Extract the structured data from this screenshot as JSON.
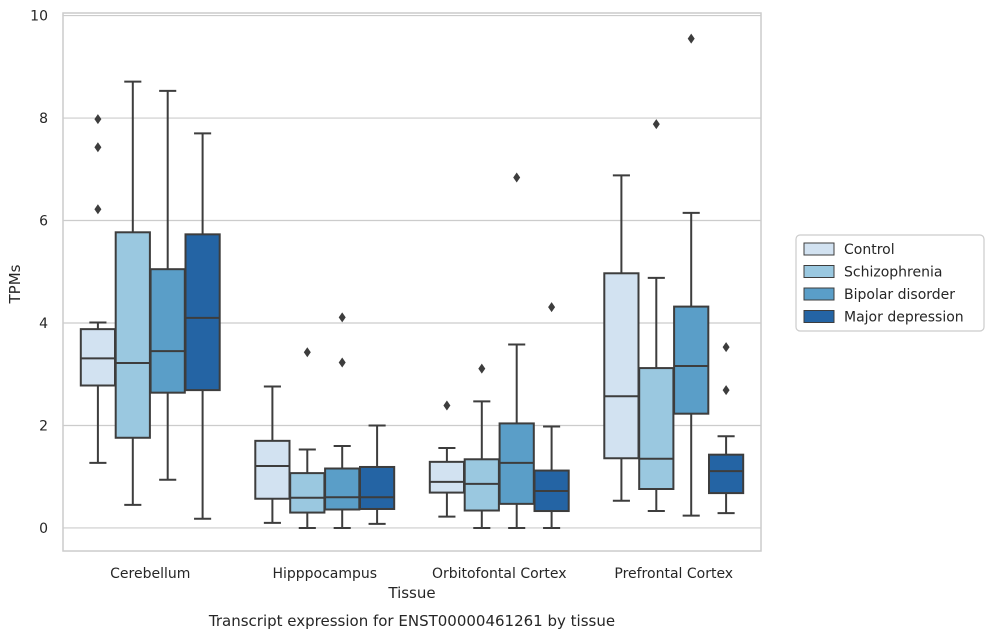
{
  "chart_data": {
    "type": "box",
    "xlabel": "Tissue",
    "ylabel": "TPMs",
    "caption": "Transcript expression for ENST00000461261 by tissue",
    "ylim": [
      -0.45,
      10.05
    ],
    "yticks": [
      0,
      2,
      4,
      6,
      8,
      10
    ],
    "grid": true,
    "legend_position": "right",
    "categories": [
      "Cerebellum",
      "Hipppocampus",
      "Orbitofontal Cortex",
      "Prefrontal Cortex"
    ],
    "series": [
      {
        "name": "Control",
        "color": "#d2e2f1",
        "boxes": [
          {
            "whisker_low": 1.27,
            "q1": 2.78,
            "median": 3.31,
            "q3": 3.88,
            "whisker_high": 4.01,
            "outliers": [
              6.22,
              7.43,
              7.98
            ]
          },
          {
            "whisker_low": 0.1,
            "q1": 0.57,
            "median": 1.21,
            "q3": 1.7,
            "whisker_high": 2.76,
            "outliers": []
          },
          {
            "whisker_low": 0.22,
            "q1": 0.69,
            "median": 0.9,
            "q3": 1.29,
            "whisker_high": 1.56,
            "outliers": [
              2.39
            ]
          },
          {
            "whisker_low": 0.53,
            "q1": 1.36,
            "median": 2.57,
            "q3": 4.97,
            "whisker_high": 6.88,
            "outliers": []
          }
        ]
      },
      {
        "name": "Schizophrenia",
        "color": "#9ac8e0",
        "boxes": [
          {
            "whisker_low": 0.45,
            "q1": 1.76,
            "median": 3.22,
            "q3": 5.77,
            "whisker_high": 8.71,
            "outliers": []
          },
          {
            "whisker_low": 0.0,
            "q1": 0.3,
            "median": 0.59,
            "q3": 1.07,
            "whisker_high": 1.53,
            "outliers": [
              3.43
            ]
          },
          {
            "whisker_low": 0.0,
            "q1": 0.34,
            "median": 0.86,
            "q3": 1.34,
            "whisker_high": 2.47,
            "outliers": [
              3.11
            ]
          },
          {
            "whisker_low": 0.33,
            "q1": 0.76,
            "median": 1.35,
            "q3": 3.12,
            "whisker_high": 4.88,
            "outliers": [
              7.88
            ]
          }
        ]
      },
      {
        "name": "Bipolar disorder",
        "color": "#5a9ec8",
        "boxes": [
          {
            "whisker_low": 0.94,
            "q1": 2.64,
            "median": 3.45,
            "q3": 5.05,
            "whisker_high": 8.53,
            "outliers": []
          },
          {
            "whisker_low": 0.0,
            "q1": 0.36,
            "median": 0.6,
            "q3": 1.16,
            "whisker_high": 1.6,
            "outliers": [
              3.23,
              4.11
            ]
          },
          {
            "whisker_low": 0.0,
            "q1": 0.47,
            "median": 1.27,
            "q3": 2.04,
            "whisker_high": 3.58,
            "outliers": [
              6.84
            ]
          },
          {
            "whisker_low": 0.24,
            "q1": 2.23,
            "median": 3.16,
            "q3": 4.32,
            "whisker_high": 6.15,
            "outliers": [
              9.55
            ]
          }
        ]
      },
      {
        "name": "Major depression",
        "color": "#2464a4",
        "boxes": [
          {
            "whisker_low": 0.18,
            "q1": 2.69,
            "median": 4.1,
            "q3": 5.73,
            "whisker_high": 7.7,
            "outliers": []
          },
          {
            "whisker_low": 0.08,
            "q1": 0.37,
            "median": 0.6,
            "q3": 1.19,
            "whisker_high": 2.0,
            "outliers": []
          },
          {
            "whisker_low": 0.0,
            "q1": 0.33,
            "median": 0.72,
            "q3": 1.12,
            "whisker_high": 1.98,
            "outliers": [
              4.31
            ]
          },
          {
            "whisker_low": 0.29,
            "q1": 0.68,
            "median": 1.11,
            "q3": 1.43,
            "whisker_high": 1.79,
            "outliers": [
              2.69,
              3.53
            ]
          }
        ]
      }
    ]
  }
}
